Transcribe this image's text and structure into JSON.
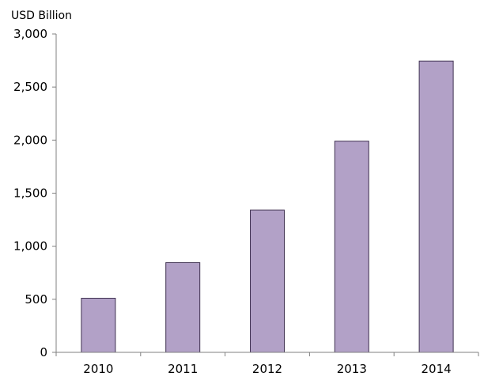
{
  "chart_data": {
    "type": "bar",
    "ylabel": "USD Billion",
    "categories": [
      "2010",
      "2011",
      "2012",
      "2013",
      "2014"
    ],
    "values": [
      510,
      845,
      1340,
      1990,
      2745
    ],
    "ylim": [
      0,
      3000
    ],
    "yticks": [
      0,
      500,
      1000,
      1500,
      2000,
      2500,
      3000
    ],
    "ytick_labels": [
      "0",
      "500",
      "1,000",
      "1,500",
      "2,000",
      "2,500",
      "3,000"
    ],
    "grid": false,
    "legend": "none",
    "colors": {
      "bar_fill": "#b2a1c7",
      "bar_stroke": "#3f3151",
      "axis": "#808080",
      "text": "#000000"
    }
  }
}
